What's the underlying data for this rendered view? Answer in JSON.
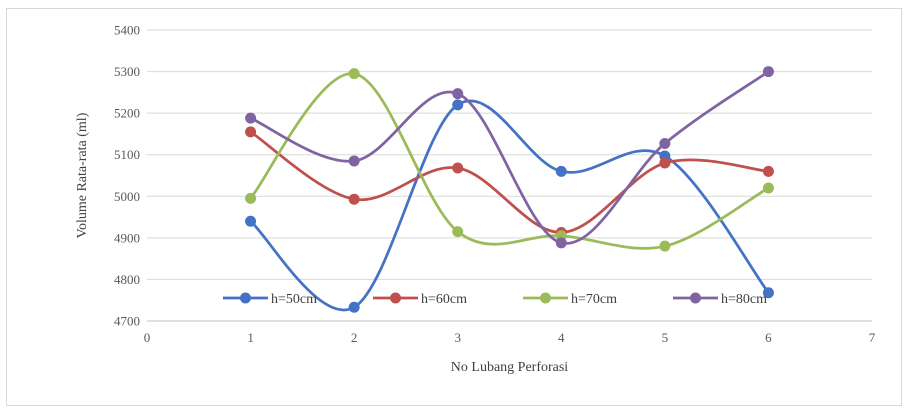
{
  "chart_data": {
    "type": "line",
    "smooth": true,
    "xlabel": "No Lubang Perforasi",
    "ylabel": "Volume Rata-rata (ml)",
    "xlim": [
      0,
      7
    ],
    "ylim": [
      4700,
      5400
    ],
    "x_ticks": [
      "0",
      "1",
      "2",
      "3",
      "4",
      "5",
      "6",
      "7"
    ],
    "y_ticks": [
      "4700",
      "4800",
      "4900",
      "5000",
      "5100",
      "5200",
      "5300",
      "5400"
    ],
    "grid": "horizontal",
    "legend_position": "bottom, inside plot",
    "x": [
      1,
      2,
      3,
      4,
      5,
      6
    ],
    "series": [
      {
        "name": "h=50cm",
        "color": "#4472C4",
        "values": [
          4940,
          4733,
          5220,
          5060,
          5097,
          4768
        ]
      },
      {
        "name": "h=60cm",
        "color": "#C0504D",
        "values": [
          5155,
          4993,
          5068,
          4913,
          5080,
          5060
        ]
      },
      {
        "name": "h=70cm",
        "color": "#9BBB59",
        "values": [
          4995,
          5295,
          4915,
          4905,
          4880,
          5020
        ]
      },
      {
        "name": "h=80cm",
        "color": "#8064A2",
        "values": [
          5188,
          5085,
          5247,
          4888,
          5127,
          5300
        ]
      }
    ]
  }
}
